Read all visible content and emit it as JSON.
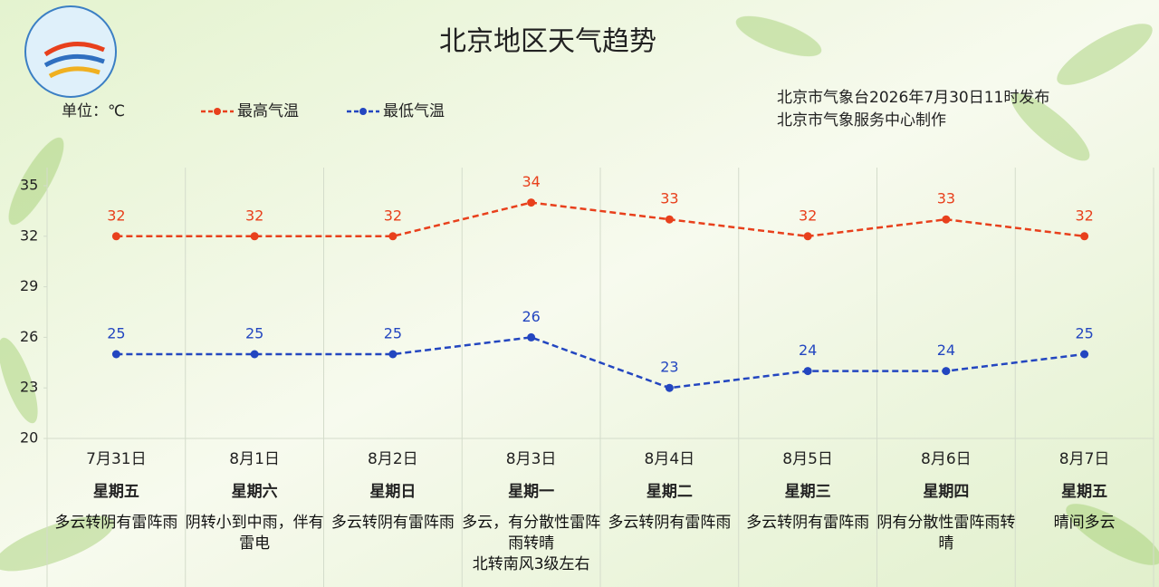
{
  "chart_data": {
    "type": "line",
    "title": "北京地区天气趋势",
    "unit": "单位：℃",
    "notes": [
      "北京市气象台2026年7月30日11时发布",
      "北京市气象服务中心制作"
    ],
    "categories": [
      "7月31日",
      "8月1日",
      "8月2日",
      "8月3日",
      "8月4日",
      "8月5日",
      "8月6日",
      "8月7日"
    ],
    "weekdays": [
      "星期五",
      "星期六",
      "星期日",
      "星期一",
      "星期二",
      "星期三",
      "星期四",
      "星期五"
    ],
    "weather": [
      "多云转阴有雷阵雨",
      "阴转小到中雨，伴有雷电",
      "多云转阴有雷阵雨",
      "多云，有分散性雷阵雨转晴\n北转南风3级左右",
      "多云转阴有雷阵雨",
      "多云转阴有雷阵雨",
      "阴有分散性雷阵雨转晴",
      "晴间多云"
    ],
    "series": [
      {
        "name": "最高气温",
        "color": "#e8401c",
        "values": [
          32,
          32,
          32,
          34,
          33,
          32,
          33,
          32
        ]
      },
      {
        "name": "最低气温",
        "color": "#2346c0",
        "values": [
          25,
          25,
          25,
          26,
          23,
          24,
          24,
          25
        ]
      }
    ],
    "ylim": [
      20,
      35
    ],
    "yticks": [
      20,
      23,
      26,
      29,
      32,
      35
    ]
  }
}
